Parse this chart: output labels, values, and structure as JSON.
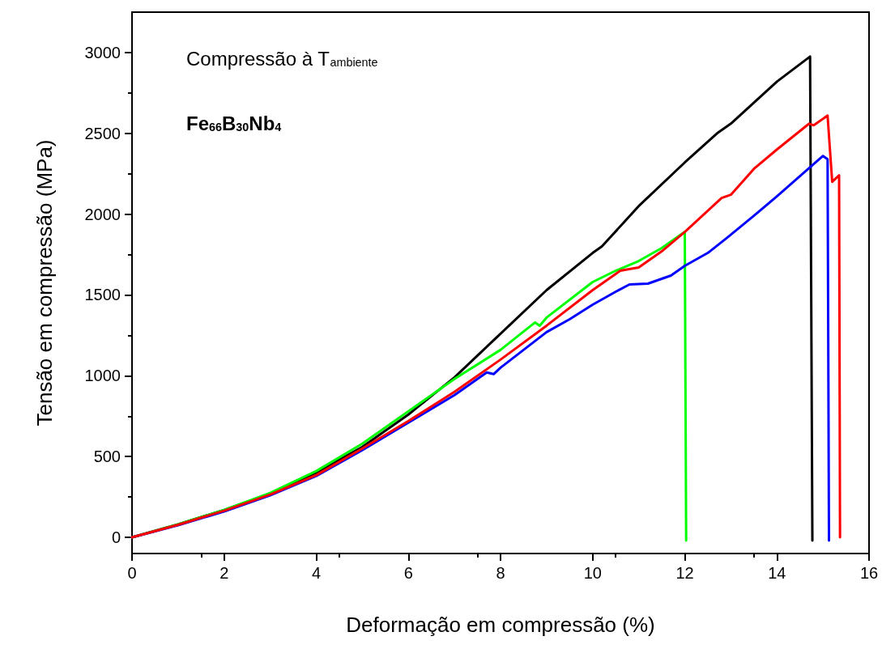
{
  "chart_data": {
    "type": "line",
    "xlabel": "Deformação em compressão (%)",
    "ylabel": "Tensão em compressão (MPa)",
    "annotations": [
      "Compressão à T$_{ambiente}$",
      "Fe$_{66}$B$_{30}$Nb$_{4}$"
    ],
    "xlim": [
      0,
      16
    ],
    "xticks": [
      0,
      2,
      4,
      6,
      8,
      10,
      12,
      14,
      16
    ],
    "ylim": [
      -100,
      3250
    ],
    "yticks": [
      0,
      500,
      1000,
      1500,
      2000,
      2500,
      3000
    ],
    "grid": false,
    "marker": "none",
    "line_style": "solid",
    "series": [
      {
        "color": "#000000",
        "x": [
          0,
          1,
          2,
          3,
          4,
          5,
          6,
          7,
          8,
          9,
          10,
          10.2,
          11,
          12,
          12.7,
          13,
          14,
          14.72,
          14.77
        ],
        "values": [
          0,
          80,
          170,
          270,
          400,
          560,
          760,
          990,
          1260,
          1530,
          1760,
          1800,
          2050,
          2320,
          2500,
          2560,
          2820,
          2975,
          -20
        ]
      },
      {
        "color": "#00ff00",
        "x": [
          0,
          1,
          2,
          3,
          4,
          5,
          6,
          7,
          8,
          8.75,
          8.85,
          9,
          10,
          10.5,
          11,
          11.5,
          12,
          12.03
        ],
        "values": [
          0,
          80,
          170,
          275,
          410,
          580,
          780,
          980,
          1160,
          1330,
          1310,
          1360,
          1580,
          1650,
          1710,
          1790,
          1890,
          -20
        ]
      },
      {
        "color": "#0000ff",
        "x": [
          0,
          1,
          2,
          3,
          4,
          5,
          6,
          7,
          7.7,
          7.85,
          8,
          9,
          9.5,
          10,
          10.5,
          10.8,
          11.2,
          11.7,
          12,
          12.5,
          12.9,
          13.5,
          14,
          15,
          15.1,
          15.13
        ],
        "values": [
          0,
          75,
          160,
          260,
          380,
          540,
          710,
          880,
          1020,
          1010,
          1050,
          1270,
          1350,
          1440,
          1520,
          1565,
          1570,
          1620,
          1680,
          1760,
          1850,
          1990,
          2110,
          2360,
          2340,
          -20
        ]
      },
      {
        "color": "#ff0000",
        "x": [
          0,
          1,
          2,
          3,
          4,
          5,
          6,
          7,
          8,
          9,
          10,
          10.6,
          11,
          11.5,
          12,
          12.8,
          13,
          13.5,
          14,
          14.7,
          14.8,
          15.1,
          15.2,
          15.35,
          15.37
        ],
        "values": [
          0,
          78,
          165,
          265,
          385,
          550,
          720,
          900,
          1100,
          1310,
          1530,
          1650,
          1670,
          1770,
          1890,
          2100,
          2120,
          2280,
          2400,
          2560,
          2550,
          2610,
          2200,
          2240,
          0
        ]
      }
    ]
  }
}
